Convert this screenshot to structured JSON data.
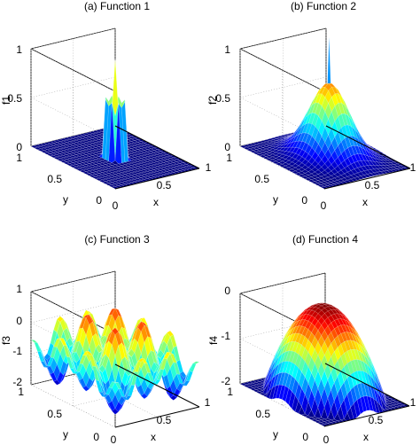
{
  "figure": {
    "background": "#ffffff",
    "colormap": "jet",
    "box_color": "#000000"
  },
  "chart_data": [
    {
      "type": "surface",
      "title": "(a) Function 1",
      "xlabel": "x",
      "ylabel": "y",
      "zlabel": "f1",
      "xlim": [
        0,
        1
      ],
      "ylim": [
        0,
        1
      ],
      "zlim": [
        0,
        1
      ],
      "xticks": [
        "0",
        "0.5",
        "1"
      ],
      "yticks": [
        "0",
        "0.5",
        "1"
      ],
      "zticks": [
        "0",
        "0.5",
        "1"
      ],
      "grid": true,
      "peaks": [
        {
          "x": 0.5,
          "y": 0.5,
          "z": 1.0
        }
      ]
    },
    {
      "type": "surface",
      "title": "(b) Function 2",
      "xlabel": "x",
      "ylabel": "y",
      "zlabel": "f2",
      "xlim": [
        0,
        1
      ],
      "ylim": [
        0,
        1
      ],
      "zlim": [
        0,
        1
      ],
      "xticks": [
        "0",
        "0.5",
        "1"
      ],
      "yticks": [
        "0",
        "0.5",
        "1"
      ],
      "zticks": [
        "0",
        "0.5",
        "1"
      ],
      "grid": true,
      "peaks": [
        {
          "x": 0.5,
          "y": 0.5,
          "z": 0.8
        },
        {
          "x": 0.9,
          "y": 0.9,
          "z": 1.0
        }
      ]
    },
    {
      "type": "surface",
      "title": "(c) Function 3",
      "xlabel": "x",
      "ylabel": "y",
      "zlabel": "f3",
      "xlim": [
        0,
        1
      ],
      "ylim": [
        0,
        1
      ],
      "zlim": [
        -2,
        1
      ],
      "xticks": [
        "0",
        "0.5",
        "1"
      ],
      "yticks": [
        "0",
        "0.5",
        "1"
      ],
      "zticks": [
        "-2",
        "-1",
        "0",
        "1"
      ],
      "grid": true,
      "peaks": [
        {
          "x": 0.5,
          "y": 0.5,
          "z": 0.5
        }
      ]
    },
    {
      "type": "surface",
      "title": "(d) Function 4",
      "xlabel": "x",
      "ylabel": "y",
      "zlabel": "f4",
      "xlim": [
        0,
        1
      ],
      "ylim": [
        0,
        1
      ],
      "zlim": [
        -2,
        0
      ],
      "xticks": [
        "0",
        "0.5",
        "1"
      ],
      "yticks": [
        "0",
        "0.5",
        "1"
      ],
      "zticks": [
        "-2",
        "-1",
        "0"
      ],
      "grid": true,
      "peaks": [
        {
          "x": 0.5,
          "y": 0.5,
          "z": 0.0
        }
      ]
    }
  ]
}
